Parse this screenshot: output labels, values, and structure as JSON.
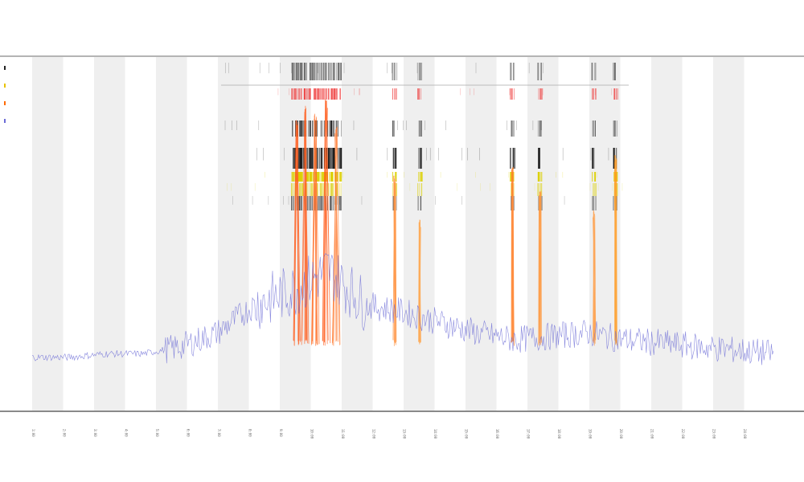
{
  "chart_data": {
    "type": "line",
    "title": "",
    "subtitle_1": "",
    "subtitle_2": "",
    "xlabel": "",
    "ylabel": "",
    "legend": {
      "placement": "top-left",
      "entries": [
        {
          "name": "",
          "color": "#222222"
        },
        {
          "name": "",
          "color": "#e8c200"
        },
        {
          "name": "",
          "color": "#ff6a00"
        },
        {
          "name": "",
          "color": "#6b6bd6"
        }
      ]
    },
    "grid": "alternating vertical bands",
    "band_color": "#efefef",
    "track_labels": [
      "",
      ""
    ],
    "x": [
      0,
      5,
      10,
      15,
      20,
      25,
      30,
      35,
      40,
      45,
      50,
      55,
      60,
      65,
      70,
      75,
      80,
      85,
      90,
      95,
      100
    ],
    "xlim": [
      0,
      100
    ],
    "ylim": [
      0,
      100
    ],
    "series": [
      {
        "color": "#6b6bd6",
        "values": [
          15,
          15,
          16,
          16,
          18,
          22,
          30,
          34,
          40,
          30,
          28,
          25,
          22,
          20,
          21,
          22,
          20,
          19,
          18,
          17,
          16
        ]
      }
    ],
    "peaks": [
      {
        "x": 35.7,
        "height": 68,
        "color": "#ff5a1a"
      },
      {
        "x": 36.8,
        "height": 72,
        "color": "#ff5a1a"
      },
      {
        "x": 38.2,
        "height": 70,
        "color": "#ff6a20"
      },
      {
        "x": 39.7,
        "height": 74,
        "color": "#ff5a1a"
      },
      {
        "x": 41.0,
        "height": 66,
        "color": "#ff7a30"
      },
      {
        "x": 48.9,
        "height": 52,
        "color": "#ff8a30"
      },
      {
        "x": 52.3,
        "height": 40,
        "color": "#ffa040"
      },
      {
        "x": 64.8,
        "height": 55,
        "color": "#ff7a20"
      },
      {
        "x": 68.5,
        "height": 48,
        "color": "#ff9030"
      },
      {
        "x": 75.8,
        "height": 42,
        "color": "#ff9a40"
      },
      {
        "x": 78.7,
        "height": 58,
        "color": "#ff9a20"
      }
    ],
    "tick_labels": [
      "1:00",
      "2:00",
      "3:00",
      "4:00",
      "5:00",
      "6:00",
      "7:00",
      "8:00",
      "9:00",
      "10:00",
      "11:00",
      "12:00",
      "13:00",
      "14:00",
      "15:00",
      "16:00",
      "17:00",
      "18:00",
      "19:00",
      "20:00",
      "21:00",
      "22:00",
      "23:00",
      "24:00"
    ]
  }
}
